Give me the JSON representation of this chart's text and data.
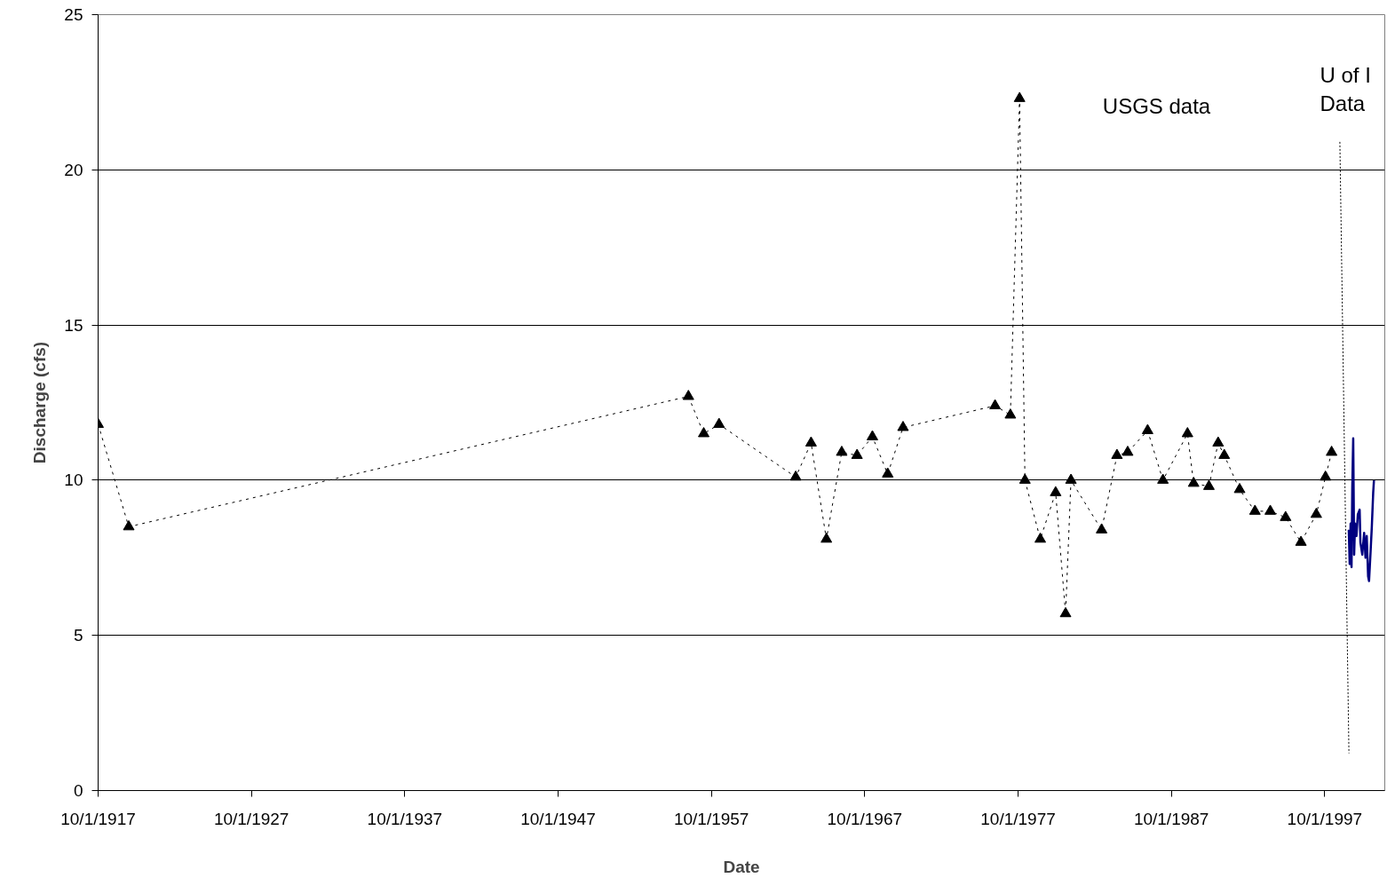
{
  "chart_data": {
    "type": "line",
    "xlabel": "Date",
    "ylabel": "Discharge (cfs)",
    "xlim": [
      "1917-10-01",
      "2001-09-01"
    ],
    "ylim": [
      0,
      25
    ],
    "xticks": [
      {
        "value": "1917-10-01",
        "label": "10/1/1917"
      },
      {
        "value": "1927-10-01",
        "label": "10/1/1927"
      },
      {
        "value": "1937-10-01",
        "label": "10/1/1937"
      },
      {
        "value": "1947-10-01",
        "label": "10/1/1947"
      },
      {
        "value": "1957-10-01",
        "label": "10/1/1957"
      },
      {
        "value": "1967-10-01",
        "label": "10/1/1967"
      },
      {
        "value": "1977-10-01",
        "label": "10/1/1977"
      },
      {
        "value": "1987-10-01",
        "label": "10/1/1987"
      },
      {
        "value": "1997-10-01",
        "label": "10/1/1997"
      }
    ],
    "yticks": [
      0,
      5,
      10,
      15,
      20,
      25
    ],
    "grid": "y",
    "series": [
      {
        "color": "#000000",
        "marker": "triangle",
        "line_style": "dashed",
        "x": [
          "1917-10-01",
          "1919-10-01",
          "1956-04-01",
          "1957-04-01",
          "1958-04-01",
          "1963-04-01",
          "1964-04-01",
          "1965-04-01",
          "1966-04-01",
          "1967-04-01",
          "1968-04-01",
          "1969-04-01",
          "1970-04-01",
          "1976-04-01",
          "1977-04-01",
          "1977-11-06",
          "1978-03-14",
          "1979-03-14",
          "1980-03-14",
          "1980-11-06",
          "1981-03-14",
          "1983-03-14",
          "1984-03-14",
          "1984-11-24",
          "1986-03-14",
          "1987-03-14",
          "1988-10-19",
          "1989-03-14",
          "1990-03-14",
          "1990-10-19",
          "1991-03-14",
          "1992-03-14",
          "1993-03-14",
          "1994-03-14",
          "1995-03-14",
          "1996-03-14",
          "1997-03-14",
          "1997-10-19",
          "1998-03-14"
        ],
        "values": [
          11.8,
          8.5,
          12.7,
          11.5,
          11.8,
          10.1,
          11.2,
          8.1,
          10.9,
          10.8,
          11.4,
          10.2,
          11.7,
          12.4,
          12.1,
          22.3,
          10.0,
          8.1,
          9.6,
          5.7,
          10.0,
          8.4,
          10.8,
          10.9,
          11.6,
          10.0,
          11.5,
          9.9,
          9.8,
          11.2,
          10.8,
          9.7,
          9.0,
          9.0,
          8.8,
          8.0,
          8.9,
          10.1,
          10.9
        ]
      },
      {
        "color": "#000080",
        "marker": "none",
        "line_style": "solid",
        "x": [
          "1999-04-27",
          "1999-05-19",
          "1999-06-10",
          "1999-07-02",
          "1999-07-20",
          "1999-08-11",
          "1999-09-02",
          "1999-09-24",
          "1999-10-27",
          "1999-11-29",
          "2000-01-11",
          "2000-01-29",
          "2000-03-14",
          "2000-04-27",
          "2000-05-30",
          "2000-06-28",
          "2000-07-31",
          "2000-08-22",
          "2000-09-24",
          "2000-10-27",
          "2000-11-29",
          "2000-12-17"
        ],
        "values": [
          8.4,
          7.3,
          8.6,
          7.2,
          9.8,
          11.35,
          7.6,
          8.6,
          8.2,
          8.9,
          9.05,
          8.0,
          7.6,
          8.3,
          7.5,
          8.2,
          6.9,
          6.75,
          7.6,
          8.5,
          9.6,
          10.0
        ]
      },
      {
        "color": "#000000",
        "marker": "none",
        "line_style": "dotted",
        "x": [
          "1998-09-27",
          "1999-05-01"
        ],
        "values": [
          20.9,
          1.2
        ]
      }
    ],
    "annotations": [
      "USGS data",
      "U of I\nData"
    ]
  }
}
